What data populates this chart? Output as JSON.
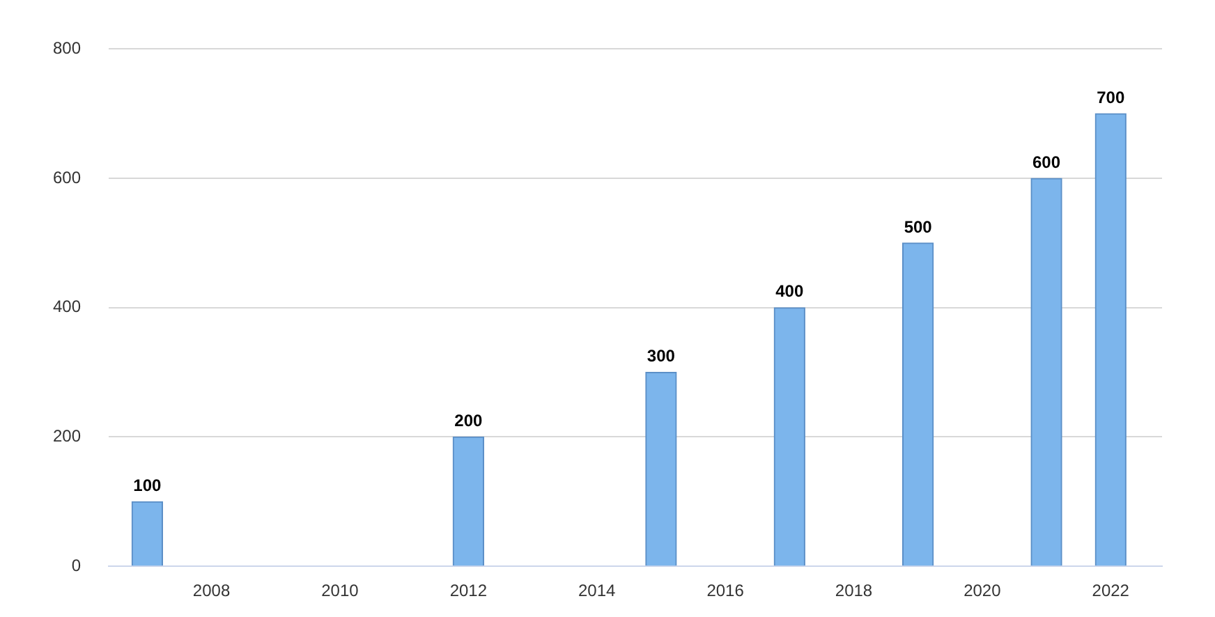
{
  "chart_data": {
    "type": "bar",
    "x": [
      2007,
      2012,
      2015,
      2017,
      2019,
      2021,
      2022
    ],
    "values": [
      100,
      200,
      300,
      400,
      500,
      600,
      700
    ],
    "color": "#7cb5ec",
    "xlim": [
      2006.4,
      2022.8
    ],
    "xticks": [
      2008,
      2010,
      2012,
      2014,
      2016,
      2018,
      2020,
      2022
    ],
    "ylim": [
      0,
      800
    ],
    "yticks": [
      0,
      200,
      400,
      600,
      800
    ],
    "grid": "y",
    "data_labels": true,
    "legend": false
  }
}
